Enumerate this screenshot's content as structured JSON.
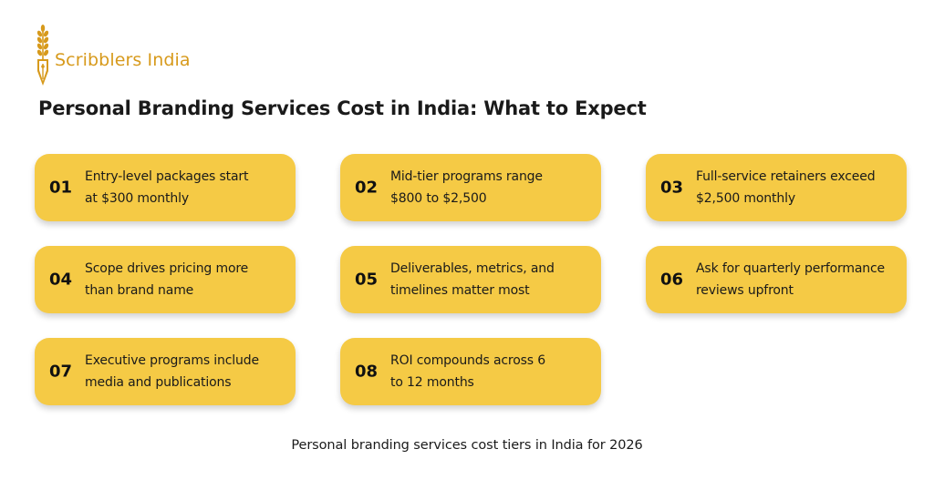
{
  "brand": {
    "name": "Scribblers India",
    "accent_color": "#d79a1c",
    "logo_icon": "wheat-pen-nib-icon"
  },
  "title": "Personal Branding Services Cost in India: What to Expect",
  "card_color": "#f5ca45",
  "cards": [
    {
      "number": "01",
      "line1": "Entry-level packages start",
      "line2": "at $300 monthly"
    },
    {
      "number": "02",
      "line1": "Mid-tier programs range",
      "line2": "$800 to $2,500"
    },
    {
      "number": "03",
      "line1": "Full-service retainers exceed",
      "line2": "$2,500 monthly"
    },
    {
      "number": "04",
      "line1": "Scope drives pricing more",
      "line2": "than brand name"
    },
    {
      "number": "05",
      "line1": "Deliverables, metrics, and",
      "line2": "timelines matter most"
    },
    {
      "number": "06",
      "line1": "Ask for quarterly performance",
      "line2": "reviews upfront"
    },
    {
      "number": "07",
      "line1": "Executive programs include",
      "line2": "media and publications"
    },
    {
      "number": "08",
      "line1": "ROI compounds across 6",
      "line2": "to 12 months"
    }
  ],
  "caption": "Personal branding services cost tiers in India for 2026"
}
